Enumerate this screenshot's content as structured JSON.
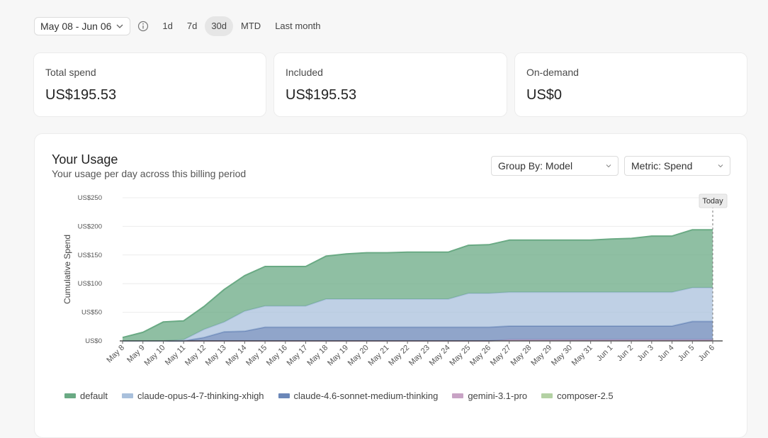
{
  "toolbar": {
    "date_range": "May 08 - Jun 06",
    "ranges": [
      {
        "label": "1d",
        "active": false
      },
      {
        "label": "7d",
        "active": false
      },
      {
        "label": "30d",
        "active": true
      },
      {
        "label": "MTD",
        "active": false
      },
      {
        "label": "Last month",
        "active": false
      }
    ]
  },
  "stats": [
    {
      "label": "Total spend",
      "value": "US$195.53"
    },
    {
      "label": "Included",
      "value": "US$195.53"
    },
    {
      "label": "On-demand",
      "value": "US$0"
    }
  ],
  "usage": {
    "title": "Your Usage",
    "subtitle": "Your usage per day across this billing period",
    "group_by": "Group By: Model",
    "metric": "Metric: Spend"
  },
  "chart_data": {
    "type": "area",
    "stacked": true,
    "ylabel": "Cumulative Spend",
    "ylim": [
      0,
      250
    ],
    "yticks": [
      "US$0",
      "US$50",
      "US$100",
      "US$150",
      "US$200",
      "US$250"
    ],
    "ytick_values": [
      0,
      50,
      100,
      150,
      200,
      250
    ],
    "marker_label": "Today",
    "grid": true,
    "legend_position": "bottom",
    "categories": [
      "May 8",
      "May 9",
      "May 10",
      "May 11",
      "May 12",
      "May 13",
      "May 14",
      "May 15",
      "May 16",
      "May 17",
      "May 18",
      "May 19",
      "May 20",
      "May 21",
      "May 22",
      "May 23",
      "May 24",
      "May 25",
      "May 26",
      "May 27",
      "May 28",
      "May 29",
      "May 30",
      "May 31",
      "Jun 1",
      "Jun 2",
      "Jun 3",
      "Jun 4",
      "Jun 5",
      "Jun 6"
    ],
    "series": [
      {
        "name": "composer-2.5",
        "color": "#b3d1a3",
        "values": [
          0,
          0,
          0,
          0,
          0,
          0,
          0,
          0,
          0,
          0,
          0,
          0,
          0,
          0,
          0,
          0,
          0,
          0,
          0,
          0,
          0,
          0,
          0,
          0,
          0,
          0,
          0,
          0,
          0,
          0
        ]
      },
      {
        "name": "gemini-3.1-pro",
        "color": "#c8a3c5",
        "values": [
          0,
          0,
          0,
          0,
          0,
          0,
          0,
          0,
          0,
          0,
          0,
          0,
          0,
          0,
          0,
          0,
          0,
          0,
          0,
          2,
          2,
          2,
          2,
          2,
          2,
          2,
          2,
          2,
          2,
          2
        ]
      },
      {
        "name": "claude-4.6-sonnet-medium-thinking",
        "color": "#6b87b8",
        "values": [
          0,
          0,
          0,
          0,
          6,
          16,
          17,
          24,
          24,
          24,
          24,
          24,
          24,
          24,
          24,
          24,
          24,
          24,
          24,
          24,
          24,
          24,
          24,
          24,
          24,
          24,
          24,
          24,
          32,
          32
        ]
      },
      {
        "name": "claude-opus-4-7-thinking-xhigh",
        "color": "#a9c0dc",
        "values": [
          0,
          0,
          0,
          2,
          14,
          17,
          35,
          37,
          37,
          37,
          49,
          49,
          49,
          49,
          49,
          49,
          49,
          59,
          59,
          59,
          59,
          59,
          59,
          59,
          59,
          59,
          59,
          59,
          59,
          59
        ]
      },
      {
        "name": "default",
        "color": "#6aaa84",
        "values": [
          6,
          15,
          33,
          33,
          40,
          57,
          62,
          69,
          69,
          69,
          75,
          79,
          81,
          81,
          82,
          82,
          82,
          84,
          85,
          91,
          91,
          91,
          91,
          91,
          93,
          94,
          98,
          98,
          101,
          101
        ]
      }
    ]
  },
  "legend": [
    {
      "name": "default",
      "color": "#6aaa84"
    },
    {
      "name": "claude-opus-4-7-thinking-xhigh",
      "color": "#a9c0dc"
    },
    {
      "name": "claude-4.6-sonnet-medium-thinking",
      "color": "#6b87b8"
    },
    {
      "name": "gemini-3.1-pro",
      "color": "#c8a3c5"
    },
    {
      "name": "composer-2.5",
      "color": "#b3d1a3"
    }
  ]
}
